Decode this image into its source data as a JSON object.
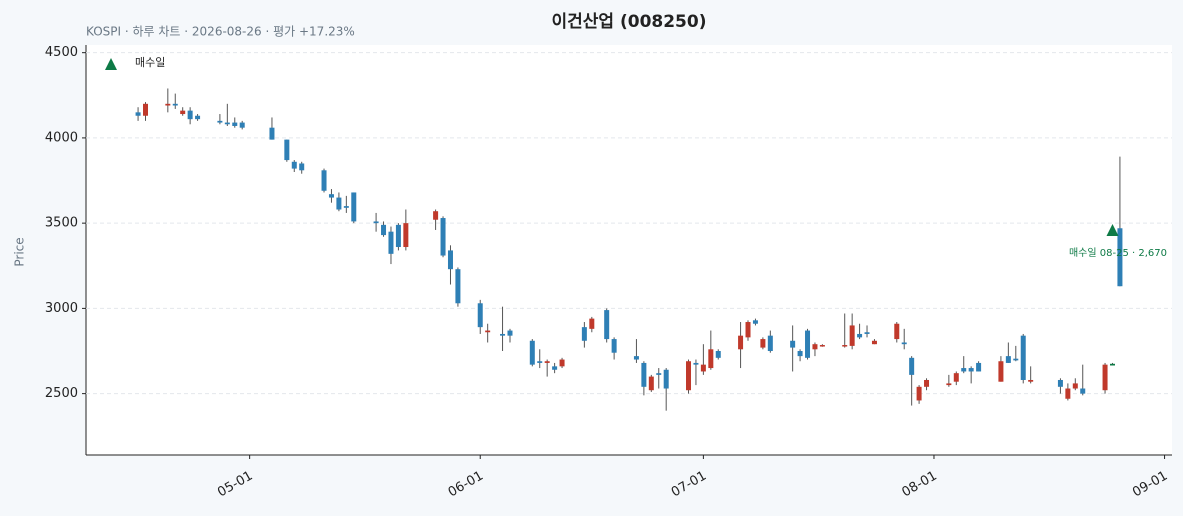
{
  "chart_data": {
    "type": "candlestick",
    "title": "이건산업 (008250)",
    "subtitle": "KOSPI · 하루 차트 · 2026-08-26 · 평가 +17.23%",
    "y_label": "Price",
    "x": [
      "04-16",
      "04-17",
      "04-20",
      "04-21",
      "04-22",
      "04-23",
      "04-24",
      "04-27",
      "04-28",
      "04-29",
      "04-30",
      "05-04",
      "05-06",
      "05-07",
      "05-08",
      "05-11",
      "05-12",
      "05-13",
      "05-14",
      "05-15",
      "05-18",
      "05-19",
      "05-20",
      "05-21",
      "05-22",
      "05-26",
      "05-27",
      "05-28",
      "05-29",
      "06-01",
      "06-02",
      "06-04",
      "06-05",
      "06-08",
      "06-09",
      "06-10",
      "06-11",
      "06-12",
      "06-15",
      "06-16",
      "06-18",
      "06-19",
      "06-22",
      "06-23",
      "06-24",
      "06-25",
      "06-26",
      "06-29",
      "06-30",
      "07-01",
      "07-02",
      "07-03",
      "07-06",
      "07-07",
      "07-08",
      "07-09",
      "07-10",
      "07-13",
      "07-14",
      "07-15",
      "07-16",
      "07-17",
      "07-20",
      "07-21",
      "07-22",
      "07-23",
      "07-24",
      "07-27",
      "07-28",
      "07-29",
      "07-30",
      "07-31",
      "08-03",
      "08-04",
      "08-05",
      "08-06",
      "08-07",
      "08-10",
      "08-11",
      "08-12",
      "08-13",
      "08-14",
      "08-18",
      "08-19",
      "08-20",
      "08-21",
      "08-24",
      "08-25",
      "08-26"
    ],
    "open": [
      4150,
      4130,
      4190,
      4200,
      4140,
      4160,
      4130,
      4100,
      4090,
      4090,
      4090,
      4060,
      3990,
      3860,
      3850,
      3810,
      3670,
      3650,
      3600,
      3680,
      3510,
      3490,
      3450,
      3490,
      3360,
      3520,
      3530,
      3340,
      3230,
      3030,
      2860,
      2850,
      2870,
      2810,
      2690,
      2680,
      2660,
      2660,
      2890,
      2880,
      2990,
      2820,
      2720,
      2680,
      2520,
      2620,
      2640,
      2520,
      2680,
      2630,
      2650,
      2750,
      2760,
      2830,
      2930,
      2770,
      2840,
      2810,
      2750,
      2870,
      2760,
      2780,
      2780,
      2780,
      2850,
      2860,
      2790,
      2820,
      2800,
      2710,
      2460,
      2540,
      2550,
      2570,
      2650,
      2650,
      2680,
      2570,
      2720,
      2705,
      2840,
      2570,
      2580,
      2470,
      2530,
      2530,
      2520,
      2665,
      3470
    ],
    "high": [
      4180,
      4210,
      4290,
      4260,
      4180,
      4180,
      4140,
      4140,
      4200,
      4120,
      4100,
      4120,
      3990,
      3870,
      3860,
      3820,
      3700,
      3680,
      3660,
      3680,
      3560,
      3510,
      3480,
      3500,
      3580,
      3580,
      3540,
      3370,
      3240,
      3050,
      2910,
      3010,
      2880,
      2820,
      2760,
      2700,
      2680,
      2710,
      2920,
      2950,
      3000,
      2830,
      2820,
      2690,
      2610,
      2650,
      2650,
      2700,
      2700,
      2790,
      2870,
      2760,
      2920,
      2930,
      2940,
      2830,
      2870,
      2900,
      2760,
      2880,
      2800,
      2790,
      2970,
      2970,
      2910,
      2900,
      2820,
      2920,
      2880,
      2720,
      2550,
      2590,
      2610,
      2630,
      2720,
      2660,
      2690,
      2720,
      2800,
      2780,
      2850,
      2660,
      2590,
      2560,
      2590,
      2670,
      2680,
      2680,
      3890
    ],
    "low": [
      4100,
      4100,
      4150,
      4170,
      4130,
      4080,
      4100,
      4080,
      4070,
      4060,
      4050,
      3990,
      3860,
      3800,
      3790,
      3680,
      3620,
      3570,
      3560,
      3500,
      3450,
      3420,
      3260,
      3340,
      3340,
      3460,
      3300,
      3140,
      3010,
      2850,
      2800,
      2750,
      2800,
      2660,
      2650,
      2600,
      2620,
      2650,
      2770,
      2860,
      2800,
      2700,
      2680,
      2490,
      2510,
      2530,
      2400,
      2500,
      2550,
      2610,
      2640,
      2700,
      2650,
      2810,
      2900,
      2760,
      2740,
      2630,
      2690,
      2700,
      2720,
      2775,
      2770,
      2760,
      2820,
      2830,
      2790,
      2800,
      2760,
      2430,
      2440,
      2520,
      2540,
      2550,
      2620,
      2560,
      2630,
      2570,
      2680,
      2690,
      2560,
      2560,
      2500,
      2460,
      2520,
      2490,
      2500,
      2665,
      3130
    ],
    "close": [
      4130,
      4200,
      4200,
      4190,
      4160,
      4110,
      4110,
      4090,
      4080,
      4070,
      4060,
      3990,
      3870,
      3820,
      3810,
      3690,
      3650,
      3580,
      3590,
      3510,
      3500,
      3430,
      3320,
      3360,
      3500,
      3570,
      3310,
      3230,
      3030,
      2890,
      2870,
      2840,
      2840,
      2670,
      2680,
      2690,
      2640,
      2700,
      2810,
      2940,
      2820,
      2740,
      2700,
      2540,
      2600,
      2610,
      2530,
      2690,
      2670,
      2670,
      2760,
      2710,
      2840,
      2920,
      2910,
      2820,
      2750,
      2770,
      2720,
      2710,
      2790,
      2785,
      2785,
      2900,
      2830,
      2850,
      2810,
      2910,
      2790,
      2610,
      2540,
      2580,
      2560,
      2620,
      2630,
      2630,
      2630,
      2690,
      2680,
      2695,
      2580,
      2580,
      2540,
      2530,
      2560,
      2500,
      2670,
      2675,
      3130
    ],
    "up_color": "#c0392b",
    "down_color": "#2e7fb5",
    "marker": {
      "x": "08-25",
      "y": 3460,
      "color": "#0e7a46",
      "label": "매수일 08-25 · 2,670",
      "legend": "매수일"
    },
    "xlim": [
      "04-09",
      "09-02"
    ],
    "xticks": [
      "05-01",
      "06-01",
      "07-01",
      "08-01",
      "09-01"
    ],
    "ylim": [
      2140,
      4545
    ],
    "yticks": [
      2500,
      3000,
      3500,
      4000,
      4500
    ],
    "grid": true
  }
}
